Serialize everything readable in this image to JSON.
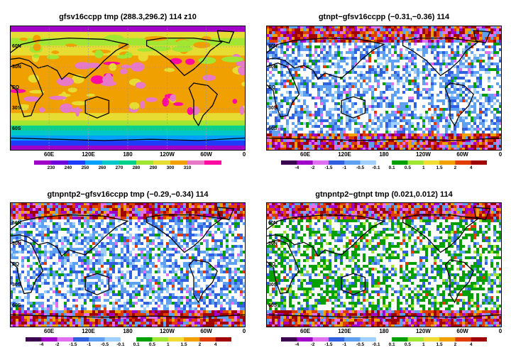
{
  "panels": [
    {
      "title": "gfsv16ccpp  tmp  (288.3,296.2)  114  z10",
      "kind": "absolute",
      "lat_labels": [
        "60N",
        "30N",
        "EQ",
        "30S",
        "60S"
      ],
      "lon_labels": [
        "60E",
        "120E",
        "180",
        "120W",
        "60W",
        "0"
      ],
      "colorbar_labels": [
        "230",
        "240",
        "250",
        "260",
        "270",
        "280",
        "290",
        "300",
        "310"
      ],
      "colorbar_colors": [
        "#a000c8",
        "#6e00dc",
        "#1e3cff",
        "#00a0ff",
        "#00c8c8",
        "#00d28c",
        "#a0e632",
        "#e6dc32",
        "#f0a000",
        "#e878c8",
        "#ff0aa0"
      ]
    },
    {
      "title": "gtnpt−gfsv16ccpp  (−0.31,−0.36)  114",
      "kind": "diff",
      "lat_labels": [
        "60N",
        "30N",
        "EQ",
        "30S",
        "60S"
      ],
      "lon_labels": [
        "60E",
        "120E",
        "180",
        "120W",
        "60W",
        "0"
      ],
      "colorbar_labels": [
        "-4",
        "-2",
        "-1.5",
        "-1",
        "-0.5",
        "-0.1",
        "0.1",
        "0.5",
        "1",
        "1.5",
        "2",
        "4"
      ],
      "colorbar_colors": [
        "#3c0050",
        "#a000c8",
        "#e070f0",
        "#3060e0",
        "#60a0f0",
        "#a0d0ff",
        "#ffffff",
        "#00a000",
        "#a0e632",
        "#f0dc32",
        "#f0a000",
        "#e03c00",
        "#a00000"
      ]
    },
    {
      "title": "gtnpntp2−gfsv16ccpp  tmp  (−0.29,−0.34)  114",
      "kind": "diff",
      "lat_labels": [
        "60N",
        "30N",
        "EQ",
        "30S",
        "60S"
      ],
      "lon_labels": [
        "60E",
        "120E",
        "180",
        "120W",
        "60W",
        "0"
      ],
      "colorbar_labels": [
        "-4",
        "-2",
        "-1.5",
        "-1",
        "-0.5",
        "-0.1",
        "0.1",
        "0.5",
        "1",
        "1.5",
        "2",
        "4"
      ],
      "colorbar_colors": [
        "#3c0050",
        "#a000c8",
        "#e070f0",
        "#3060e0",
        "#60a0f0",
        "#a0d0ff",
        "#ffffff",
        "#00a000",
        "#a0e632",
        "#f0dc32",
        "#f0a000",
        "#e03c00",
        "#a00000"
      ]
    },
    {
      "title": "gtnpntp2−gtnpt  tmp  (0.021,0.012)  114",
      "kind": "diff2",
      "lat_labels": [
        "60N",
        "30N",
        "EQ",
        "30S",
        "60S"
      ],
      "lon_labels": [
        "60E",
        "120E",
        "180",
        "120W",
        "60W",
        "0"
      ],
      "colorbar_labels": [
        "-4",
        "-2",
        "-1.5",
        "-1",
        "-0.5",
        "-0.1",
        "0.1",
        "0.5",
        "1",
        "1.5",
        "2",
        "4"
      ],
      "colorbar_colors": [
        "#3c0050",
        "#a000c8",
        "#e070f0",
        "#3060e0",
        "#60a0f0",
        "#a0d0ff",
        "#ffffff",
        "#00a000",
        "#a0e632",
        "#f0dc32",
        "#f0a000",
        "#e03c00",
        "#a00000"
      ]
    }
  ]
}
